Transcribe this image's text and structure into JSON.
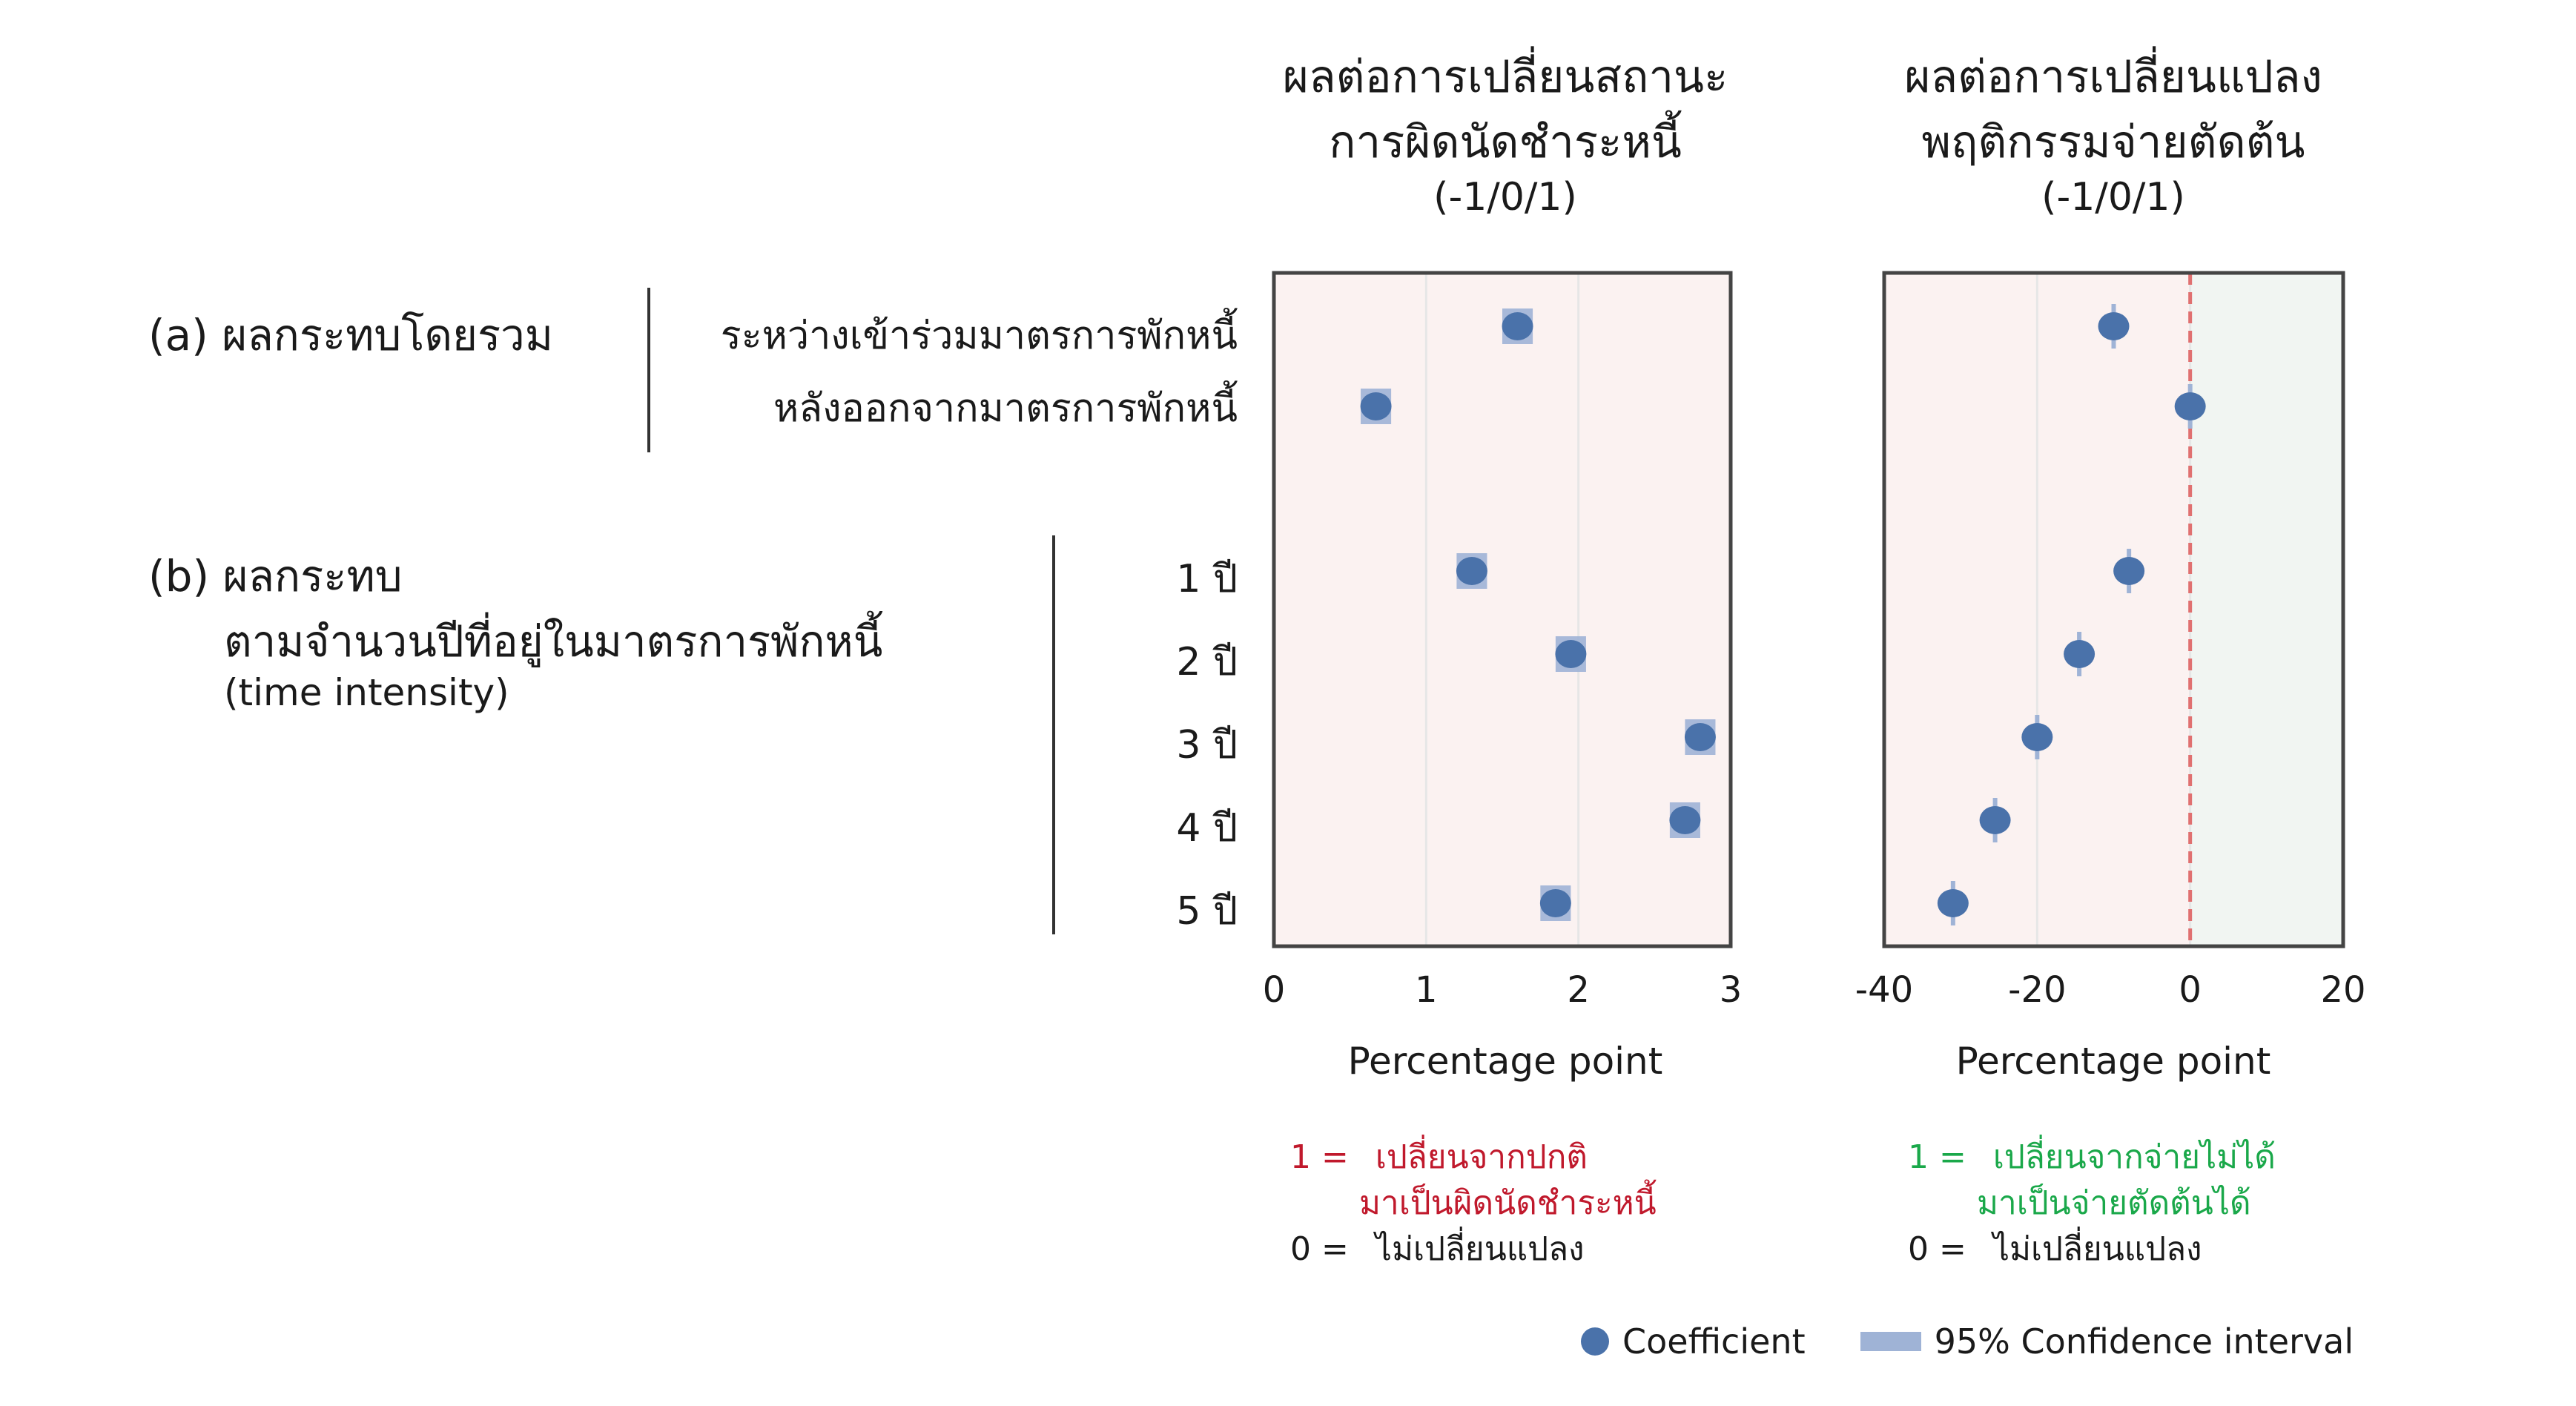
{
  "panels": [
    {
      "title_line1": "ผลต่อการเปลี่ยนสถานะ",
      "title_line2": "การผิดนัดชำระหนี้",
      "title_line3": "(-1/0/1)",
      "xlabel": "Percentage point",
      "ticks": [
        "0",
        "1",
        "2",
        "3"
      ]
    },
    {
      "title_line1": "ผลต่อการเปลี่ยนแปลง",
      "title_line2": "พฤติกรรมจ่ายตัดต้น",
      "title_line3": "(-1/0/1)",
      "xlabel": "Percentage point",
      "ticks": [
        "-40",
        "-20",
        "0",
        "20"
      ]
    }
  ],
  "groups": {
    "a": {
      "label": "(a)  ผลกระทบโดยรวม"
    },
    "b": {
      "label_line1": "(b)  ผลกระทบ",
      "label_line2": "ตามจำนวนปีที่อยู่ในมาตรการพักหนี้",
      "label_line3": "(time intensity)"
    }
  },
  "rows": [
    "ระหว่างเข้าร่วมมาตรการพักหนี้",
    "หลังออกจากมาตรการพักหนี้",
    "1 ปี",
    "2 ปี",
    "3 ปี",
    "4 ปี",
    "5 ปี"
  ],
  "notes": {
    "left": {
      "one_prefix": "1 =",
      "one_line1": "เปลี่ยนจากปกติ",
      "one_line2": "มาเป็นผิดนัดชำระหนี้",
      "zero_prefix": "0 =",
      "zero_text": "ไม่เปลี่ยนแปลง"
    },
    "right": {
      "one_prefix": "1 =",
      "one_line1": "เปลี่ยนจากจ่ายไม่ได้",
      "one_line2": "มาเป็นจ่ายตัดต้นได้",
      "zero_prefix": "0 =",
      "zero_text": "ไม่เปลี่ยนแปลง"
    }
  },
  "legend": {
    "coefficient": "Coefficient",
    "ci": "95% Confidence interval"
  },
  "colors": {
    "point": "#4a72aa",
    "ci": "#9fb3d6",
    "negative_bg": "#fbf2f1",
    "positive_bg": "#f1f5f2",
    "zero_line": "#e07070",
    "frame": "#444444",
    "red_text": "#c0192c",
    "green_text": "#1aa84a"
  },
  "chart_data": [
    {
      "type": "scatter",
      "xlim": [
        0,
        3
      ],
      "xlabel": "Percentage point",
      "categories": [
        "ระหว่างเข้าร่วมมาตรการพักหนี้",
        "หลังออกจากมาตรการพักหนี้",
        "1 ปี",
        "2 ปี",
        "3 ปี",
        "4 ปี",
        "5 ปี"
      ],
      "coef": [
        1.6,
        0.67,
        1.3,
        1.95,
        2.8,
        2.7,
        1.85
      ],
      "ci_low": [
        1.5,
        0.57,
        1.2,
        1.85,
        2.7,
        2.6,
        1.75
      ],
      "ci_high": [
        1.7,
        0.77,
        1.4,
        2.05,
        2.9,
        2.8,
        1.95
      ],
      "grid": true
    },
    {
      "type": "scatter",
      "xlim": [
        -40,
        20
      ],
      "xlabel": "Percentage point",
      "categories": [
        "ระหว่างเข้าร่วมมาตรการพักหนี้",
        "หลังออกจากมาตรการพักหนี้",
        "1 ปี",
        "2 ปี",
        "3 ปี",
        "4 ปี",
        "5 ปี"
      ],
      "coef": [
        -10,
        0,
        -8,
        -14.5,
        -20,
        -25.5,
        -31
      ],
      "ci_low": [
        -10.5,
        -0.5,
        -8.5,
        -15,
        -20.5,
        -26,
        -31.5
      ],
      "ci_high": [
        -9.5,
        0.5,
        -7.5,
        -14,
        -19.5,
        -25,
        -30.5
      ],
      "reference_line": 0,
      "grid": true
    }
  ]
}
